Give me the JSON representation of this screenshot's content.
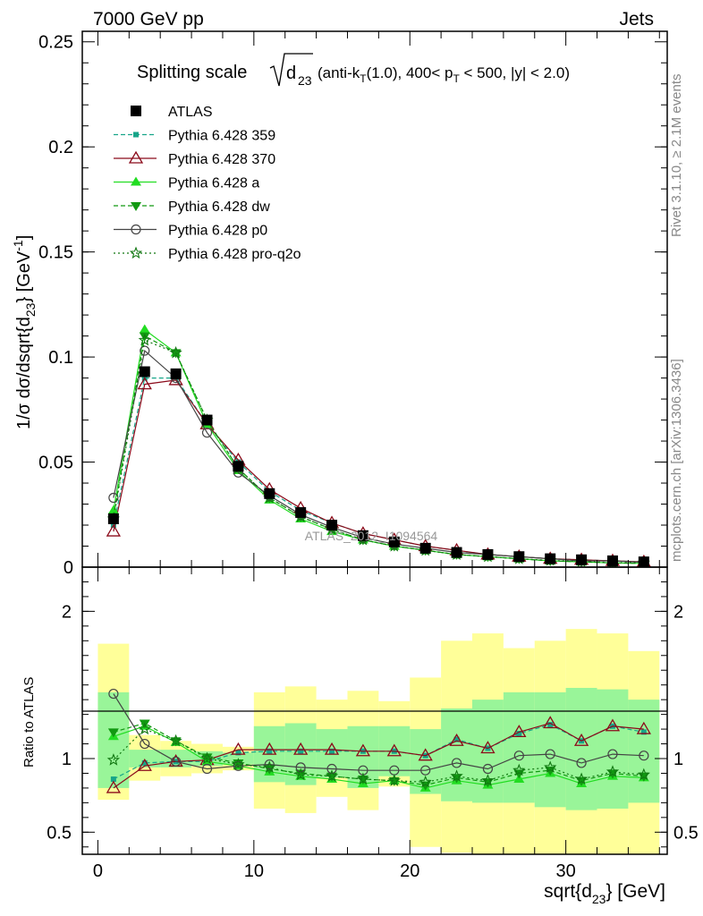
{
  "header": {
    "left": "7000 GeV pp",
    "right": "Jets"
  },
  "side_labels": {
    "rivet": "Rivet 3.1.10, ≥ 2.1M events",
    "mcplots": "mcplots.cern.ch [arXiv:1306.3436]"
  },
  "watermark": "ATLAS_2012_I1094564",
  "title": {
    "prefix": "Splitting scale",
    "sub": "23",
    "suffix": "(anti-k",
    "kt_sub": "T",
    "rest": "(1.0), 400< p",
    "pt_sub": "T",
    "tail": " < 500, |y| < 2.0)"
  },
  "axes": {
    "ylabel_main": "1/σ dσ/dsqrt{d",
    "ylabel_sub": "23",
    "ylabel_end": "} [GeV",
    "ylabel_sup": "-1",
    "ylabel_close": "]",
    "ylabel_ratio": "Ratio to ATLAS",
    "xlabel": "sqrt{d",
    "xlabel_sub": "23",
    "xlabel_end": "} [GeV]"
  },
  "legend": [
    {
      "name": "ATLAS",
      "color": "#000000",
      "marker": "square-filled",
      "dash": "none"
    },
    {
      "name": "Pythia 6.428 359",
      "color": "#17a589",
      "marker": "square-small",
      "dash": "dashed"
    },
    {
      "name": "Pythia 6.428 370",
      "color": "#8b0a1a",
      "marker": "triangle-open",
      "dash": "solid"
    },
    {
      "name": "Pythia 6.428 a",
      "color": "#22dd22",
      "marker": "triangle-filled",
      "dash": "solid"
    },
    {
      "name": "Pythia 6.428 dw",
      "color": "#119911",
      "marker": "triangle-down",
      "dash": "dashed"
    },
    {
      "name": "Pythia 6.428 p0",
      "color": "#444444",
      "marker": "circle-open",
      "dash": "solid"
    },
    {
      "name": "Pythia 6.428 pro-q2o",
      "color": "#117711",
      "marker": "star",
      "dash": "dotted"
    }
  ],
  "chart_data": {
    "type": "line",
    "x": [
      1,
      3,
      5,
      7,
      9,
      11,
      13,
      15,
      17,
      19,
      21,
      23,
      25,
      27,
      29,
      31,
      33,
      35
    ],
    "xlim": [
      -1,
      36.5
    ],
    "ylim_main": [
      0,
      0.255
    ],
    "ylim_ratio": [
      0.35,
      2.3
    ],
    "xticks": [
      "0",
      "10",
      "20",
      "30"
    ],
    "yticks_main": [
      "0",
      "0.05",
      "0.1",
      "0.15",
      "0.2",
      "0.25"
    ],
    "yticks_ratio": [
      "0.5",
      "1",
      "2"
    ],
    "series": [
      {
        "name": "ATLAS",
        "values": [
          0.023,
          0.093,
          0.092,
          0.07,
          0.048,
          0.035,
          0.026,
          0.02,
          0.015,
          0.012,
          0.009,
          0.007,
          0.006,
          0.005,
          0.004,
          0.0035,
          0.003,
          0.0025
        ]
      },
      {
        "name": "Pythia 6.428 359",
        "values": [
          0.02,
          0.09,
          0.09,
          0.068,
          0.05,
          0.036,
          0.027,
          0.021,
          0.016,
          0.013,
          0.01,
          0.008,
          0.006,
          0.005,
          0.004,
          0.0035,
          0.003,
          0.0025
        ]
      },
      {
        "name": "Pythia 6.428 370",
        "values": [
          0.017,
          0.087,
          0.089,
          0.068,
          0.051,
          0.037,
          0.028,
          0.021,
          0.016,
          0.013,
          0.01,
          0.008,
          0.006,
          0.005,
          0.004,
          0.0035,
          0.003,
          0.0025
        ]
      },
      {
        "name": "Pythia 6.428 a",
        "values": [
          0.027,
          0.113,
          0.102,
          0.068,
          0.046,
          0.032,
          0.023,
          0.017,
          0.013,
          0.01,
          0.008,
          0.006,
          0.005,
          0.004,
          0.003,
          0.0025,
          0.002,
          0.0018
        ]
      },
      {
        "name": "Pythia 6.428 dw",
        "values": [
          0.024,
          0.11,
          0.102,
          0.07,
          0.047,
          0.033,
          0.024,
          0.018,
          0.013,
          0.01,
          0.008,
          0.006,
          0.005,
          0.004,
          0.003,
          0.0025,
          0.002,
          0.0018
        ]
      },
      {
        "name": "Pythia 6.428 p0",
        "values": [
          0.033,
          0.103,
          0.09,
          0.064,
          0.045,
          0.034,
          0.025,
          0.019,
          0.014,
          0.011,
          0.009,
          0.007,
          0.006,
          0.005,
          0.004,
          0.003,
          0.003,
          0.0023
        ]
      },
      {
        "name": "Pythia 6.428 pro-q2o",
        "values": [
          0.023,
          0.108,
          0.102,
          0.07,
          0.047,
          0.033,
          0.024,
          0.018,
          0.013,
          0.01,
          0.008,
          0.006,
          0.005,
          0.004,
          0.0032,
          0.0027,
          0.0022,
          0.002
        ]
      }
    ],
    "ratio_series": [
      {
        "name": "Pythia 6.428 359",
        "values": [
          0.86,
          0.97,
          0.98,
          0.98,
          1.04,
          1.05,
          1.05,
          1.05,
          1.05,
          1.05,
          1.02,
          1.13,
          1.07,
          1.17,
          1.23,
          1.12,
          1.22,
          1.18
        ]
      },
      {
        "name": "Pythia 6.428 370",
        "values": [
          0.8,
          0.95,
          0.98,
          0.99,
          1.06,
          1.06,
          1.06,
          1.06,
          1.05,
          1.05,
          1.02,
          1.12,
          1.07,
          1.18,
          1.24,
          1.12,
          1.22,
          1.2
        ]
      },
      {
        "name": "Pythia 6.428 a",
        "values": [
          1.15,
          1.22,
          1.11,
          0.98,
          0.95,
          0.91,
          0.88,
          0.86,
          0.83,
          0.85,
          0.8,
          0.85,
          0.82,
          0.86,
          0.9,
          0.83,
          0.88,
          0.87
        ]
      },
      {
        "name": "Pythia 6.428 dw",
        "values": [
          1.18,
          1.24,
          1.12,
          1.01,
          0.97,
          0.93,
          0.9,
          0.88,
          0.86,
          0.85,
          0.82,
          0.87,
          0.84,
          0.9,
          0.92,
          0.85,
          0.9,
          0.88
        ]
      },
      {
        "name": "Pythia 6.428 p0",
        "values": [
          1.44,
          1.1,
          0.98,
          0.93,
          0.95,
          0.96,
          0.94,
          0.93,
          0.92,
          0.92,
          0.92,
          0.97,
          0.93,
          1.02,
          1.03,
          0.97,
          1.03,
          1.02
        ]
      },
      {
        "name": "Pythia 6.428 pro-q2o",
        "values": [
          0.99,
          1.2,
          1.12,
          1.0,
          0.96,
          0.94,
          0.89,
          0.88,
          0.86,
          0.85,
          0.84,
          0.88,
          0.85,
          0.92,
          0.94,
          0.86,
          0.91,
          0.89
        ]
      }
    ],
    "bands": {
      "yellow": [
        [
          0.72,
          1.78
        ],
        [
          0.85,
          1.16
        ],
        [
          0.88,
          1.12
        ],
        [
          0.9,
          1.1
        ],
        [
          0.92,
          1.08
        ],
        [
          0.66,
          1.45
        ],
        [
          0.63,
          1.49
        ],
        [
          0.74,
          1.4
        ],
        [
          0.65,
          1.46
        ],
        [
          0.81,
          1.39
        ],
        [
          0.4,
          1.55
        ],
        [
          0.36,
          1.8
        ],
        [
          0.3,
          1.85
        ],
        [
          0.35,
          1.75
        ],
        [
          0.3,
          1.8
        ],
        [
          0.3,
          1.88
        ],
        [
          0.3,
          1.85
        ],
        [
          0.3,
          1.73
        ]
      ],
      "green": [
        [
          0.8,
          1.45
        ],
        [
          0.94,
          1.06
        ],
        [
          0.94,
          1.06
        ],
        [
          0.95,
          1.05
        ],
        [
          0.96,
          1.04
        ],
        [
          0.84,
          1.22
        ],
        [
          0.82,
          1.24
        ],
        [
          0.87,
          1.2
        ],
        [
          0.8,
          1.22
        ],
        [
          0.88,
          1.22
        ],
        [
          0.76,
          1.2
        ],
        [
          0.71,
          1.34
        ],
        [
          0.7,
          1.4
        ],
        [
          0.7,
          1.45
        ],
        [
          0.67,
          1.45
        ],
        [
          0.65,
          1.48
        ],
        [
          0.66,
          1.47
        ],
        [
          0.7,
          1.4
        ]
      ]
    }
  }
}
